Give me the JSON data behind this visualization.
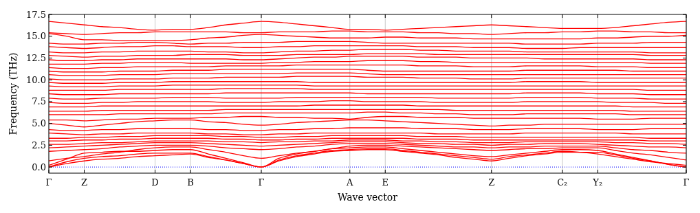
{
  "chart_data": {
    "type": "line",
    "xlabel": "Wave vector",
    "ylabel": "Frequency (THz)",
    "categories": [
      "Γ",
      null,
      "Z",
      null,
      null,
      null,
      "D",
      null,
      "B",
      null,
      null,
      null,
      "Γ",
      null,
      null,
      null,
      null,
      "A",
      null,
      "E",
      null,
      null,
      null,
      null,
      null,
      "Z",
      null,
      null,
      null,
      "C₂",
      null,
      "Y₂",
      null,
      null,
      null,
      null,
      "Γ"
    ],
    "ylim": [
      -0.7,
      17.5
    ],
    "yticks": [
      {
        "value": 0,
        "label": "0.0"
      },
      {
        "value": 2.5,
        "label": "2.5"
      },
      {
        "value": 5,
        "label": "5.0"
      },
      {
        "value": 7.5,
        "label": "7.5"
      },
      {
        "value": 10,
        "label": "10.0"
      },
      {
        "value": 12.5,
        "label": "12.5"
      },
      {
        "value": 15,
        "label": "15.0"
      },
      {
        "value": 17.5,
        "label": "17.5"
      }
    ],
    "grid": "x",
    "ref_lines": [
      {
        "axis": "y",
        "value": 0,
        "color": "#0000ff",
        "line_style": "dotted"
      }
    ],
    "series": [
      {
        "color": "#ff0000",
        "values": [
          0,
          0.4,
          0.7,
          0.9,
          1.0,
          1.2,
          1.3,
          1.4,
          1.5,
          1.1,
          0.8,
          0.4,
          0,
          0.7,
          1.2,
          1.5,
          1.8,
          1.9,
          2.0,
          2.0,
          1.8,
          1.6,
          1.4,
          1.1,
          0.9,
          0.7,
          1.0,
          1.3,
          1.5,
          1.7,
          1.7,
          1.7,
          1.4,
          1.0,
          0.7,
          0.3,
          0
        ]
      },
      {
        "color": "#ff0000",
        "values": [
          0,
          0.6,
          1.0,
          1.2,
          1.3,
          1.5,
          1.6,
          1.6,
          1.6,
          1.2,
          0.8,
          0.4,
          0,
          0.8,
          1.3,
          1.6,
          1.9,
          2.0,
          2.1,
          2.1,
          1.9,
          1.7,
          1.5,
          1.3,
          1.1,
          0.9,
          1.2,
          1.4,
          1.6,
          1.8,
          1.7,
          1.5,
          1.2,
          0.9,
          0.6,
          0.4,
          0.2
        ]
      },
      {
        "color": "#ff0000",
        "values": [
          0.2,
          0.9,
          1.6,
          1.7,
          1.8,
          1.8,
          1.9,
          2.0,
          2.0,
          1.5,
          1.0,
          0.5,
          0,
          1.0,
          1.5,
          1.8,
          2.1,
          2.2,
          2.3,
          2.3,
          2.1,
          1.9,
          1.7,
          1.5,
          1.3,
          1.2,
          1.4,
          1.6,
          1.8,
          2.0,
          2.0,
          1.9,
          1.5,
          1.1,
          0.7,
          0.3,
          0
        ]
      },
      {
        "color": "#ff0000",
        "values": [
          0.7,
          1.0,
          1.2,
          1.5,
          1.7,
          2.0,
          2.2,
          2.3,
          2.3,
          2.0,
          1.7,
          1.3,
          1.0,
          1.3,
          1.6,
          1.8,
          2.1,
          2.4,
          2.5,
          2.5,
          2.4,
          2.3,
          2.2,
          2.1,
          2.0,
          1.9,
          2.0,
          2.1,
          2.1,
          2.2,
          2.2,
          2.2,
          1.9,
          1.6,
          1.4,
          1.1,
          0.8
        ]
      },
      {
        "color": "#ff0000",
        "values": [
          1.8,
          1.9,
          2.0,
          2.1,
          2.3,
          2.4,
          2.5,
          2.5,
          2.5,
          2.4,
          2.2,
          2.1,
          2.0,
          2.1,
          2.3,
          2.4,
          2.6,
          2.7,
          2.7,
          2.7,
          2.6,
          2.5,
          2.4,
          2.3,
          2.3,
          2.2,
          2.3,
          2.3,
          2.4,
          2.4,
          2.4,
          2.4,
          2.2,
          2.0,
          1.9,
          1.7,
          1.6
        ]
      },
      {
        "color": "#ff0000",
        "values": [
          2.2,
          2.3,
          2.4,
          2.5,
          2.6,
          2.7,
          2.8,
          2.8,
          2.8,
          2.7,
          2.6,
          2.5,
          2.4,
          2.5,
          2.6,
          2.7,
          2.8,
          2.9,
          2.9,
          2.9,
          2.8,
          2.7,
          2.7,
          2.6,
          2.6,
          2.5,
          2.6,
          2.6,
          2.7,
          2.7,
          2.7,
          2.6,
          2.5,
          2.4,
          2.3,
          2.3,
          2.2
        ]
      },
      {
        "color": "#ff0000",
        "values": [
          2.6,
          2.6,
          2.7,
          2.8,
          2.8,
          2.9,
          3.0,
          3.0,
          3.0,
          3.0,
          2.9,
          2.9,
          2.8,
          2.9,
          2.9,
          3.0,
          3.0,
          3.1,
          3.1,
          3.1,
          3.0,
          3.0,
          2.9,
          2.9,
          2.8,
          2.8,
          2.8,
          2.9,
          2.9,
          2.9,
          2.9,
          2.9,
          2.8,
          2.8,
          2.7,
          2.7,
          2.6
        ]
      },
      {
        "color": "#ff0000",
        "values": [
          3.0,
          3.0,
          3.1,
          3.1,
          3.2,
          3.2,
          3.3,
          3.3,
          3.3,
          3.3,
          3.2,
          3.2,
          3.1,
          3.1,
          3.2,
          3.2,
          3.3,
          3.3,
          3.3,
          3.3,
          3.3,
          3.2,
          3.2,
          3.2,
          3.1,
          3.1,
          3.1,
          3.1,
          3.1,
          3.1,
          3.1,
          3.1,
          3.1,
          3.1,
          3.0,
          3.0,
          3.0
        ]
      },
      {
        "color": "#ff0000",
        "values": [
          3.3,
          3.3,
          3.4,
          3.4,
          3.5,
          3.5,
          3.6,
          3.6,
          3.6,
          3.6,
          3.5,
          3.5,
          3.4,
          3.4,
          3.5,
          3.5,
          3.6,
          3.6,
          3.6,
          3.6,
          3.6,
          3.5,
          3.5,
          3.5,
          3.4,
          3.4,
          3.4,
          3.4,
          3.4,
          3.4,
          3.4,
          3.4,
          3.4,
          3.4,
          3.3,
          3.3,
          3.3
        ]
      },
      {
        "color": "#ff0000",
        "values": [
          3.9,
          3.8,
          3.7,
          3.8,
          3.8,
          3.9,
          3.9,
          3.9,
          3.9,
          3.8,
          3.8,
          3.7,
          3.7,
          3.8,
          3.8,
          3.9,
          3.9,
          3.9,
          3.9,
          3.9,
          3.9,
          3.9,
          3.8,
          3.8,
          3.8,
          3.8,
          3.8,
          3.9,
          3.9,
          3.9,
          3.9,
          3.9,
          3.9,
          3.8,
          3.8,
          3.8,
          3.8
        ]
      },
      {
        "color": "#ff0000",
        "values": [
          4.3,
          4.2,
          4.2,
          4.3,
          4.3,
          4.4,
          4.4,
          4.4,
          4.4,
          4.3,
          4.3,
          4.2,
          4.2,
          4.3,
          4.3,
          4.4,
          4.4,
          4.5,
          4.5,
          4.5,
          4.5,
          4.4,
          4.4,
          4.4,
          4.3,
          4.3,
          4.3,
          4.4,
          4.4,
          4.4,
          4.4,
          4.3,
          4.3,
          4.3,
          4.4,
          4.4,
          4.4
        ]
      },
      {
        "color": "#ff0000",
        "values": [
          5.0,
          4.8,
          4.6,
          4.8,
          5.0,
          5.2,
          5.3,
          5.4,
          5.4,
          5.2,
          5.1,
          4.9,
          4.8,
          4.9,
          5.1,
          5.2,
          5.3,
          5.4,
          5.4,
          5.3,
          5.2,
          5.1,
          5.0,
          4.9,
          4.8,
          4.7,
          4.8,
          4.8,
          4.9,
          4.9,
          4.9,
          4.9,
          4.9,
          4.9,
          4.9,
          4.9,
          4.9
        ]
      },
      {
        "color": "#ff0000",
        "values": [
          5.4,
          5.4,
          5.3,
          5.4,
          5.5,
          5.5,
          5.6,
          5.6,
          5.6,
          5.7,
          5.7,
          5.8,
          5.8,
          5.7,
          5.7,
          5.6,
          5.6,
          5.5,
          5.7,
          5.8,
          5.8,
          5.7,
          5.7,
          5.7,
          5.6,
          5.6,
          5.6,
          5.6,
          5.6,
          5.6,
          5.6,
          5.5,
          5.5,
          5.5,
          5.6,
          5.6,
          5.6
        ]
      },
      {
        "color": "#ff0000",
        "values": [
          6.0,
          6.0,
          6.0,
          6.0,
          6.1,
          6.1,
          6.1,
          6.1,
          6.1,
          6.1,
          6.2,
          6.2,
          6.2,
          6.2,
          6.2,
          6.2,
          6.2,
          6.2,
          6.3,
          6.3,
          6.2,
          6.2,
          6.1,
          6.1,
          6.0,
          6.0,
          6.0,
          6.1,
          6.1,
          6.1,
          6.1,
          6.1,
          6.1,
          6.0,
          6.0,
          6.0,
          6.0
        ]
      },
      {
        "color": "#ff0000",
        "values": [
          6.4,
          6.4,
          6.4,
          6.5,
          6.5,
          6.5,
          6.5,
          6.5,
          6.5,
          6.5,
          6.6,
          6.6,
          6.6,
          6.6,
          6.6,
          6.6,
          6.6,
          6.6,
          6.6,
          6.6,
          6.6,
          6.6,
          6.6,
          6.5,
          6.5,
          6.5,
          6.5,
          6.5,
          6.5,
          6.5,
          6.5,
          6.5,
          6.5,
          6.4,
          6.4,
          6.4,
          6.4
        ]
      },
      {
        "color": "#ff0000",
        "values": [
          6.9,
          6.9,
          6.9,
          7.0,
          7.0,
          7.0,
          7.0,
          7.0,
          7.0,
          7.0,
          7.0,
          7.0,
          7.0,
          7.0,
          7.0,
          7.1,
          7.1,
          7.1,
          7.1,
          7.1,
          7.1,
          7.0,
          7.0,
          7.0,
          7.0,
          7.0,
          7.0,
          7.0,
          7.0,
          7.0,
          7.0,
          7.0,
          7.0,
          6.9,
          6.9,
          6.9,
          6.9
        ]
      },
      {
        "color": "#ff0000",
        "values": [
          7.4,
          7.3,
          7.3,
          7.4,
          7.4,
          7.5,
          7.5,
          7.5,
          7.5,
          7.5,
          7.4,
          7.4,
          7.4,
          7.5,
          7.5,
          7.5,
          7.6,
          7.6,
          7.5,
          7.5,
          7.5,
          7.5,
          7.4,
          7.4,
          7.4,
          7.4,
          7.4,
          7.5,
          7.5,
          7.5,
          7.5,
          7.5,
          7.4,
          7.4,
          7.4,
          7.3,
          7.3
        ]
      },
      {
        "color": "#ff0000",
        "values": [
          7.9,
          7.8,
          7.8,
          7.9,
          7.9,
          7.9,
          7.9,
          8.0,
          8.0,
          8.0,
          7.9,
          7.9,
          7.9,
          7.9,
          8.0,
          8.0,
          8.0,
          8.0,
          8.0,
          8.0,
          8.0,
          8.0,
          7.9,
          7.9,
          7.9,
          7.9,
          7.9,
          8.0,
          8.0,
          8.0,
          8.0,
          7.9,
          7.9,
          7.9,
          7.8,
          7.8,
          7.8
        ]
      },
      {
        "color": "#ff0000",
        "values": [
          8.4,
          8.3,
          8.3,
          8.3,
          8.4,
          8.4,
          8.4,
          8.4,
          8.4,
          8.4,
          8.5,
          8.5,
          8.5,
          8.5,
          8.5,
          8.5,
          8.5,
          8.5,
          8.4,
          8.4,
          8.4,
          8.4,
          8.4,
          8.4,
          8.4,
          8.4,
          8.4,
          8.5,
          8.5,
          8.5,
          8.5,
          8.4,
          8.4,
          8.4,
          8.3,
          8.3,
          8.3
        ]
      },
      {
        "color": "#ff0000",
        "values": [
          8.8,
          8.8,
          8.8,
          8.8,
          8.9,
          8.9,
          8.9,
          8.9,
          8.9,
          8.9,
          9.0,
          9.0,
          9.0,
          9.0,
          9.0,
          8.9,
          8.9,
          8.9,
          8.9,
          8.9,
          8.9,
          8.9,
          8.9,
          8.9,
          8.9,
          8.9,
          8.9,
          8.9,
          8.9,
          8.9,
          8.9,
          8.9,
          8.9,
          8.9,
          8.8,
          8.8,
          8.8
        ]
      },
      {
        "color": "#ff0000",
        "values": [
          9.3,
          9.2,
          9.2,
          9.2,
          9.3,
          9.3,
          9.3,
          9.4,
          9.4,
          9.4,
          9.4,
          9.4,
          9.4,
          9.4,
          9.4,
          9.3,
          9.3,
          9.3,
          9.3,
          9.3,
          9.3,
          9.3,
          9.3,
          9.3,
          9.3,
          9.3,
          9.3,
          9.3,
          9.3,
          9.3,
          9.3,
          9.3,
          9.3,
          9.3,
          9.3,
          9.3,
          9.3
        ]
      },
      {
        "color": "#ff0000",
        "values": [
          9.7,
          9.6,
          9.6,
          9.6,
          9.7,
          9.7,
          9.7,
          9.8,
          9.8,
          9.8,
          9.8,
          9.8,
          9.8,
          9.8,
          9.8,
          9.7,
          9.7,
          9.7,
          9.7,
          9.7,
          9.7,
          9.7,
          9.7,
          9.7,
          9.7,
          9.7,
          9.7,
          9.8,
          9.8,
          9.8,
          9.8,
          9.7,
          9.7,
          9.7,
          9.7,
          9.7,
          9.7
        ]
      },
      {
        "color": "#ff0000",
        "values": [
          10.1,
          10.0,
          10.0,
          10.0,
          10.1,
          10.1,
          10.1,
          10.2,
          10.2,
          10.2,
          10.3,
          10.3,
          10.3,
          10.3,
          10.4,
          10.4,
          10.4,
          10.4,
          10.3,
          10.3,
          10.3,
          10.2,
          10.2,
          10.2,
          10.1,
          10.1,
          10.1,
          10.2,
          10.2,
          10.2,
          10.2,
          10.2,
          10.2,
          10.2,
          10.2,
          10.2,
          10.2
        ]
      },
      {
        "color": "#ff0000",
        "values": [
          10.6,
          10.5,
          10.5,
          10.5,
          10.6,
          10.6,
          10.6,
          10.7,
          10.7,
          10.7,
          10.7,
          10.7,
          10.7,
          10.7,
          10.8,
          10.8,
          10.8,
          10.8,
          10.7,
          10.6,
          10.6,
          10.6,
          10.6,
          10.6,
          10.6,
          10.6,
          10.6,
          10.6,
          10.6,
          10.6,
          10.6,
          10.6,
          10.6,
          10.6,
          10.6,
          10.6,
          10.6
        ]
      },
      {
        "color": "#ff0000",
        "values": [
          11.0,
          10.9,
          10.9,
          10.9,
          11.0,
          11.0,
          11.0,
          11.1,
          11.1,
          11.1,
          11.2,
          11.2,
          11.2,
          11.2,
          11.2,
          11.2,
          11.2,
          11.2,
          11.1,
          11.0,
          11.0,
          11.0,
          11.0,
          11.0,
          11.0,
          11.0,
          11.0,
          11.1,
          11.1,
          11.1,
          11.1,
          11.1,
          11.1,
          11.0,
          11.0,
          11.0,
          11.0
        ]
      },
      {
        "color": "#ff0000",
        "values": [
          11.4,
          11.3,
          11.3,
          11.4,
          11.4,
          11.5,
          11.5,
          11.5,
          11.5,
          11.5,
          11.6,
          11.6,
          11.6,
          11.6,
          11.7,
          11.7,
          11.7,
          11.7,
          11.7,
          11.7,
          11.7,
          11.6,
          11.6,
          11.6,
          11.5,
          11.5,
          11.5,
          11.6,
          11.6,
          11.6,
          11.6,
          11.5,
          11.5,
          11.5,
          11.4,
          11.4,
          11.4
        ]
      },
      {
        "color": "#ff0000",
        "values": [
          11.8,
          11.8,
          11.8,
          11.9,
          11.9,
          12.0,
          12.0,
          12.0,
          11.9,
          11.9,
          11.9,
          11.9,
          11.9,
          12.0,
          12.0,
          12.1,
          12.1,
          12.1,
          12.2,
          12.2,
          12.2,
          12.1,
          12.1,
          12.0,
          12.0,
          12.0,
          12.0,
          12.0,
          12.0,
          12.0,
          12.0,
          12.0,
          12.0,
          12.0,
          11.9,
          11.9,
          11.9
        ]
      },
      {
        "color": "#ff0000",
        "values": [
          12.3,
          12.2,
          12.2,
          12.3,
          12.3,
          12.4,
          12.4,
          12.4,
          12.4,
          12.4,
          12.4,
          12.3,
          12.3,
          12.4,
          12.5,
          12.6,
          12.6,
          12.7,
          12.7,
          12.7,
          12.7,
          12.6,
          12.6,
          12.6,
          12.5,
          12.5,
          12.5,
          12.5,
          12.4,
          12.4,
          12.4,
          12.4,
          12.4,
          12.4,
          12.3,
          12.3,
          12.3
        ]
      },
      {
        "color": "#ff0000",
        "values": [
          12.8,
          12.7,
          12.6,
          12.7,
          12.7,
          12.8,
          12.8,
          12.8,
          12.9,
          12.9,
          12.9,
          12.8,
          12.8,
          12.8,
          12.9,
          12.9,
          12.9,
          12.9,
          13.0,
          13.0,
          13.0,
          13.0,
          12.9,
          12.9,
          12.9,
          12.9,
          12.9,
          12.9,
          12.9,
          12.9,
          12.9,
          12.9,
          12.9,
          12.9,
          12.8,
          12.8,
          12.8
        ]
      },
      {
        "color": "#ff0000",
        "values": [
          13.2,
          13.1,
          13.1,
          13.2,
          13.2,
          13.3,
          13.3,
          13.3,
          13.3,
          13.2,
          13.2,
          13.1,
          13.1,
          13.2,
          13.3,
          13.3,
          13.4,
          13.4,
          13.5,
          13.5,
          13.5,
          13.4,
          13.4,
          13.3,
          13.3,
          13.3,
          13.3,
          13.2,
          13.2,
          13.2,
          13.2,
          13.2,
          13.2,
          13.2,
          13.1,
          13.1,
          13.1
        ]
      },
      {
        "color": "#ff0000",
        "values": [
          13.8,
          13.7,
          13.6,
          13.7,
          13.8,
          13.8,
          13.9,
          13.9,
          13.8,
          13.8,
          13.8,
          13.7,
          13.7,
          13.8,
          13.8,
          13.9,
          13.9,
          13.9,
          13.9,
          13.9,
          13.9,
          13.8,
          13.8,
          13.8,
          13.7,
          13.7,
          13.7,
          13.6,
          13.6,
          13.6,
          13.7,
          13.7,
          13.7,
          13.7,
          13.7,
          13.7,
          13.7
        ]
      },
      {
        "color": "#ff0000",
        "values": [
          14.2,
          14.1,
          14.1,
          14.2,
          14.2,
          14.3,
          14.3,
          14.2,
          14.1,
          14.2,
          14.2,
          14.3,
          14.3,
          14.3,
          14.4,
          14.4,
          14.4,
          14.4,
          14.3,
          14.2,
          14.2,
          14.2,
          14.2,
          14.2,
          14.2,
          14.2,
          14.2,
          14.1,
          14.1,
          14.1,
          14.1,
          14.2,
          14.2,
          14.2,
          14.3,
          14.3,
          14.3
        ]
      },
      {
        "color": "#ff0000",
        "values": [
          15.3,
          15.0,
          14.6,
          14.6,
          14.5,
          14.5,
          14.5,
          14.5,
          14.6,
          14.8,
          14.9,
          15.1,
          15.2,
          15.1,
          15.0,
          14.9,
          14.8,
          14.8,
          14.8,
          14.9,
          14.9,
          14.8,
          14.8,
          14.8,
          14.7,
          14.7,
          14.7,
          14.7,
          14.7,
          14.7,
          14.7,
          14.8,
          14.8,
          14.9,
          15.0,
          15.0,
          15.1
        ]
      },
      {
        "color": "#ff0000",
        "values": [
          15.4,
          15.3,
          15.2,
          15.3,
          15.4,
          15.4,
          15.5,
          15.5,
          15.5,
          15.5,
          15.5,
          15.4,
          15.4,
          15.5,
          15.5,
          15.5,
          15.6,
          15.6,
          15.5,
          15.5,
          15.5,
          15.4,
          15.4,
          15.3,
          15.3,
          15.2,
          15.3,
          15.4,
          15.4,
          15.5,
          15.5,
          15.6,
          15.6,
          15.5,
          15.5,
          15.4,
          15.4
        ]
      },
      {
        "color": "#ff0000",
        "values": [
          16.7,
          16.5,
          16.3,
          16.1,
          16.0,
          15.8,
          15.7,
          15.8,
          15.8,
          16.0,
          16.3,
          16.5,
          16.7,
          16.6,
          16.4,
          16.2,
          16.0,
          15.8,
          15.8,
          15.7,
          15.8,
          15.9,
          16.0,
          16.1,
          16.2,
          16.3,
          16.2,
          16.1,
          16.0,
          15.9,
          15.9,
          15.9,
          16.0,
          16.2,
          16.4,
          16.6,
          16.7
        ]
      }
    ]
  }
}
